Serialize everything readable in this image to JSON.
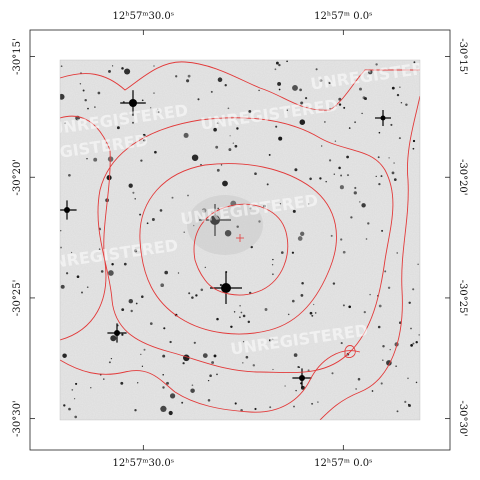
{
  "chart_data": {
    "type": "sky-image",
    "ra_top": [
      {
        "label": "12ʰ57ᵐ30.0ˢ",
        "value": 30.0
      },
      {
        "label": "12ʰ57ᵐ 0.0ˢ",
        "value": 0.0
      }
    ],
    "ra_bottom": [
      {
        "label": "12ʰ57ᵐ30.0ˢ",
        "value": 30.0
      },
      {
        "label": "12ʰ57ᵐ 0.0ˢ",
        "value": 0.0
      }
    ],
    "dec_left": [
      {
        "label": "-30°15'",
        "value": -15
      },
      {
        "label": "-30°20'",
        "value": -20
      },
      {
        "label": "-30°25'",
        "value": -25
      },
      {
        "label": "-30°30'",
        "value": -30
      }
    ],
    "dec_right": [
      {
        "label": "-30°15'",
        "value": -15
      },
      {
        "label": "-30°20'",
        "value": -20
      },
      {
        "label": "-30°25'",
        "value": -25
      },
      {
        "label": "-30°30'",
        "value": -30
      }
    ],
    "ra_range_sec": [
      47,
      -16
    ],
    "dec_range_arcmin": [
      -31.3,
      -13.9
    ],
    "watermark": "UNREGISTERED",
    "contour_color": "#e23a3a",
    "background_color": "#e6e6e6"
  }
}
